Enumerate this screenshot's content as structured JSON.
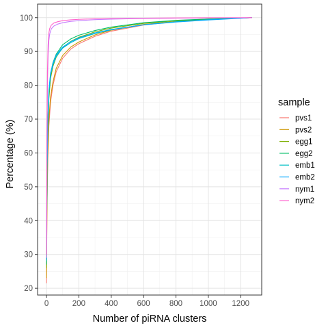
{
  "chart_data": {
    "type": "line",
    "title": "",
    "xlabel": "Number of piRNA clusters",
    "ylabel": "Percentage (%)",
    "xlim": [
      -55,
      1330
    ],
    "ylim": [
      18,
      104
    ],
    "x_ticks": [
      0,
      200,
      400,
      600,
      800,
      1000,
      1200
    ],
    "y_ticks": [
      20,
      30,
      40,
      50,
      60,
      70,
      80,
      90,
      100
    ],
    "grid": true,
    "legend": {
      "title": "sample",
      "position": "right"
    },
    "series": [
      {
        "name": "pvs1",
        "color": "#F8766D",
        "x": [
          0,
          3,
          8,
          15,
          25,
          40,
          60,
          100,
          150,
          200,
          300,
          400,
          600,
          800,
          1000,
          1200,
          1270
        ],
        "y": [
          21.5,
          42,
          58,
          68,
          75,
          80,
          84,
          88,
          90.7,
          92.3,
          94.5,
          96,
          97.8,
          98.8,
          99.4,
          99.85,
          100
        ]
      },
      {
        "name": "pvs2",
        "color": "#CD9600",
        "x": [
          0,
          3,
          8,
          15,
          25,
          40,
          60,
          100,
          150,
          200,
          300,
          400,
          600,
          800,
          1000,
          1200,
          1270
        ],
        "y": [
          23,
          44,
          60,
          70,
          76.5,
          81,
          85,
          88.8,
          91.3,
          92.8,
          94.9,
          96.3,
          98,
          98.9,
          99.5,
          99.85,
          100
        ]
      },
      {
        "name": "egg1",
        "color": "#7CAE00",
        "x": [
          0,
          3,
          8,
          15,
          25,
          40,
          60,
          100,
          150,
          200,
          300,
          400,
          600,
          800,
          1000,
          1200,
          1270
        ],
        "y": [
          26,
          50,
          66,
          76,
          82,
          85.6,
          88.3,
          91.2,
          93,
          94.2,
          95.8,
          96.9,
          98.3,
          99.1,
          99.6,
          99.9,
          100
        ]
      },
      {
        "name": "egg2",
        "color": "#00BE67",
        "x": [
          0,
          3,
          8,
          15,
          25,
          40,
          60,
          100,
          150,
          200,
          300,
          400,
          600,
          800,
          1000,
          1200,
          1270
        ],
        "y": [
          27,
          52,
          68,
          77.5,
          83.3,
          86.7,
          89.2,
          92,
          93.7,
          94.8,
          96.2,
          97.2,
          98.5,
          99.2,
          99.6,
          99.9,
          100
        ]
      },
      {
        "name": "emb1",
        "color": "#00BFC4",
        "x": [
          0,
          3,
          8,
          15,
          25,
          40,
          60,
          100,
          150,
          200,
          300,
          400,
          600,
          800,
          1000,
          1200,
          1270
        ],
        "y": [
          28,
          53,
          69,
          78,
          83,
          86,
          88.5,
          91,
          92.6,
          93.8,
          95.3,
          96.4,
          97.9,
          98.8,
          99.4,
          99.85,
          100
        ]
      },
      {
        "name": "emb2",
        "color": "#00A9FF",
        "x": [
          0,
          3,
          8,
          15,
          25,
          40,
          60,
          100,
          150,
          200,
          300,
          400,
          600,
          800,
          1000,
          1200,
          1270
        ],
        "y": [
          28.5,
          54,
          70,
          78.7,
          83.6,
          86.5,
          88.9,
          91.3,
          92.9,
          94,
          95.5,
          96.5,
          97.9,
          98.7,
          99.3,
          99.8,
          100
        ]
      },
      {
        "name": "nym1",
        "color": "#C77CFF",
        "x": [
          0,
          3,
          6,
          10,
          15,
          20,
          30,
          45,
          70,
          100,
          150,
          200,
          300,
          400,
          600,
          800,
          1000,
          1200,
          1270
        ],
        "y": [
          29,
          62,
          80,
          89,
          93.3,
          95.2,
          96.7,
          97.5,
          98.1,
          98.5,
          98.9,
          99.1,
          99.4,
          99.55,
          99.75,
          99.85,
          99.92,
          99.97,
          100
        ]
      },
      {
        "name": "nym2",
        "color": "#FF61CC",
        "x": [
          0,
          3,
          6,
          10,
          15,
          20,
          30,
          45,
          70,
          100,
          150,
          200,
          300,
          400,
          600,
          800,
          1000,
          1200,
          1270
        ],
        "y": [
          30,
          66,
          84,
          92,
          95.5,
          96.8,
          97.8,
          98.4,
          98.8,
          99.1,
          99.35,
          99.5,
          99.65,
          99.75,
          99.85,
          99.92,
          99.96,
          99.98,
          100
        ]
      }
    ]
  }
}
